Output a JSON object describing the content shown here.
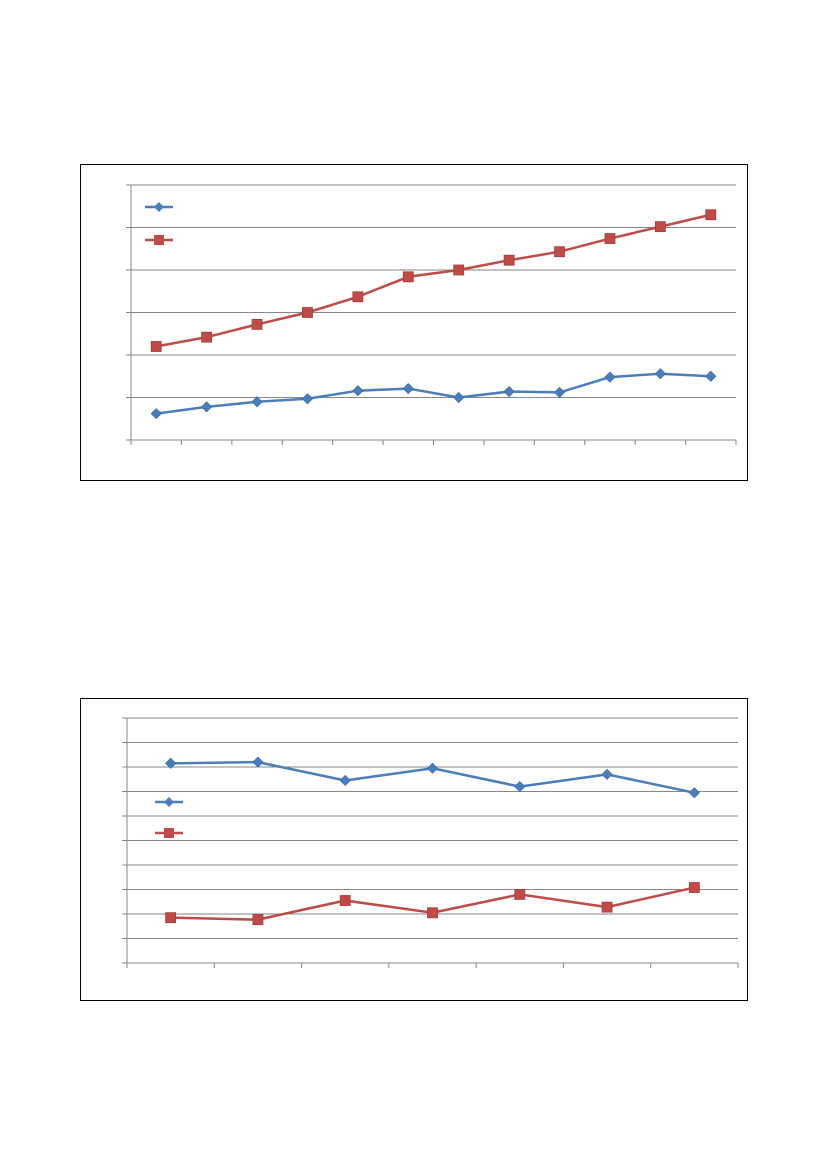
{
  "chart_data": [
    {
      "type": "line",
      "title": "",
      "xlabel": "",
      "ylabel": "",
      "ylim": [
        0,
        6
      ],
      "y_gridlines": 6,
      "x_count": 12,
      "grid": true,
      "legend_position": "top-left",
      "series": [
        {
          "name": "",
          "color": "#4a7ebb",
          "marker": "diamond",
          "values": [
            0.62,
            0.78,
            0.9,
            0.97,
            1.16,
            1.21,
            1.0,
            1.14,
            1.12,
            1.48,
            1.56,
            1.5
          ]
        },
        {
          "name": "",
          "color": "#be4b48",
          "marker": "square",
          "values": [
            2.2,
            2.42,
            2.72,
            3.0,
            3.37,
            3.84,
            4.0,
            4.23,
            4.43,
            4.74,
            5.02,
            5.3
          ]
        }
      ]
    },
    {
      "type": "line",
      "title": "",
      "xlabel": "",
      "ylabel": "",
      "ylim": [
        0,
        10
      ],
      "y_gridlines": 10,
      "x_count": 7,
      "grid": true,
      "legend_position": "middle-left",
      "series": [
        {
          "name": "",
          "color": "#4a7ebb",
          "marker": "diamond",
          "values": [
            8.15,
            8.2,
            7.45,
            7.95,
            7.2,
            7.7,
            6.95
          ]
        },
        {
          "name": "",
          "color": "#be4b48",
          "marker": "square",
          "values": [
            1.85,
            1.77,
            2.55,
            2.05,
            2.8,
            2.28,
            3.08
          ]
        }
      ]
    }
  ]
}
